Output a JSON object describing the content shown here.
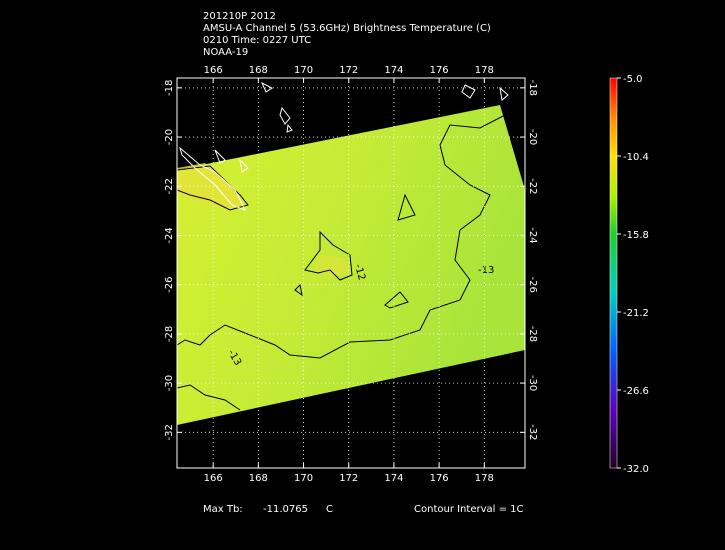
{
  "header": {
    "lines": [
      "201210P 2012",
      "AMSU-A Channel 5 (53.6GHz) Brightness Temperature (C)",
      "0210 Time: 0227 UTC",
      "NOAA-19"
    ]
  },
  "map": {
    "xlim": [
      164.4,
      179.8
    ],
    "ylim": [
      -33.45,
      -17.6
    ],
    "xticks": [
      166,
      168,
      170,
      172,
      174,
      176,
      178
    ],
    "yticks": [
      -18,
      -20,
      -22,
      -24,
      -26,
      -28,
      -30,
      -32
    ],
    "grid": true,
    "contour_labels": [
      "-13",
      "-13",
      "-12"
    ]
  },
  "colorbar": {
    "clim": [
      -32,
      -5
    ],
    "ticks": [
      {
        "value": -5,
        "label": "-5.0"
      },
      {
        "value": -10.4,
        "label": "-10.4"
      },
      {
        "value": -15.8,
        "label": "-15.8"
      },
      {
        "value": -21.2,
        "label": "-21.2"
      },
      {
        "value": -26.6,
        "label": "-26.6"
      },
      {
        "value": -32,
        "label": "-32.0"
      }
    ]
  },
  "footer": {
    "max_label": "Max Tb:",
    "max_value": -11.0765,
    "max_unit": "C",
    "contour_interval": "Contour Interval = 1C"
  }
}
